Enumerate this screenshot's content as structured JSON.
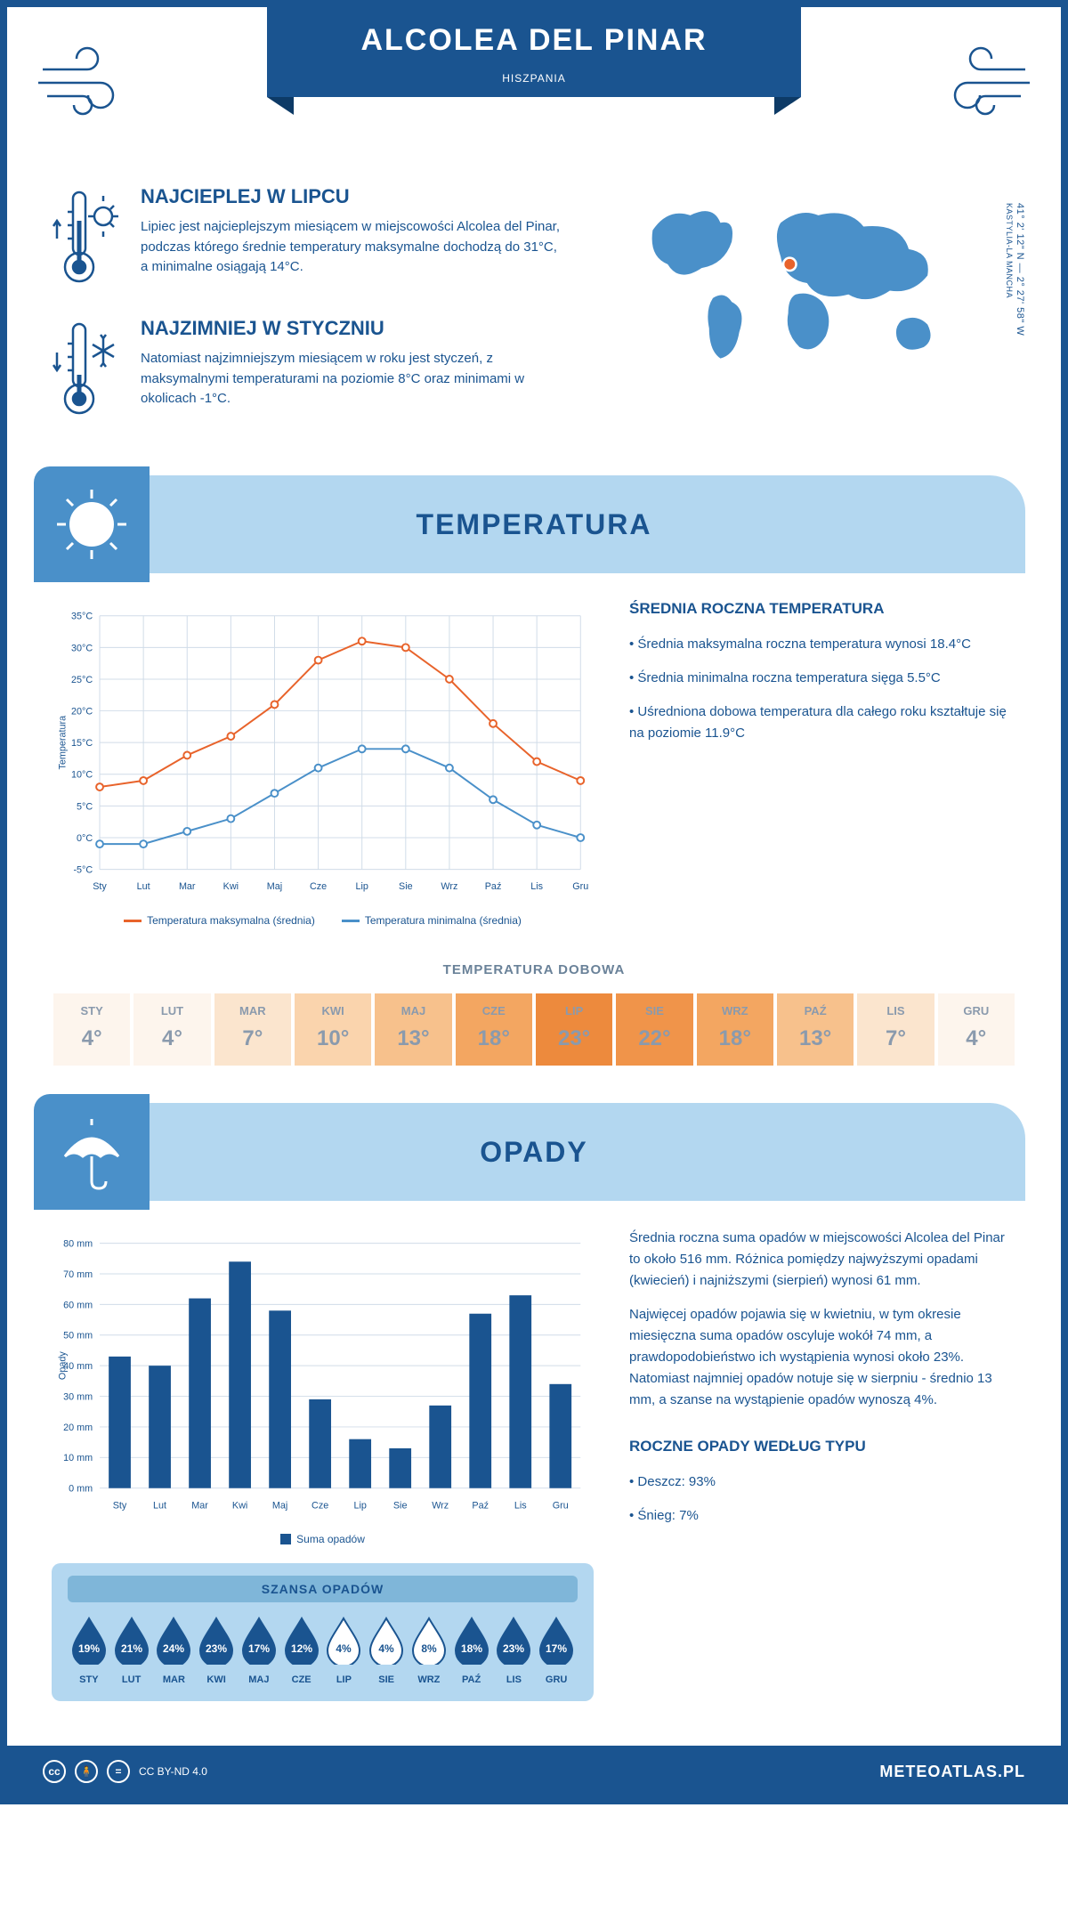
{
  "header": {
    "title": "ALCOLEA DEL PINAR",
    "subtitle": "HISZPANIA"
  },
  "coords": {
    "text": "41° 2' 12\" N — 2° 27' 58\" W",
    "region": "KASTYLIA-LA MANCHA"
  },
  "facts": {
    "hot": {
      "title": "NAJCIEPLEJ W LIPCU",
      "text": "Lipiec jest najcieplejszym miesiącem w miejscowości Alcolea del Pinar, podczas którego średnie temperatury maksymalne dochodzą do 31°C, a minimalne osiągają 14°C."
    },
    "cold": {
      "title": "NAJZIMNIEJ W STYCZNIU",
      "text": "Natomiast najzimniejszym miesiącem w roku jest styczeń, z maksymalnymi temperaturami na poziomie 8°C oraz minimami w okolicach -1°C."
    }
  },
  "temp_section": {
    "title": "TEMPERATURA",
    "chart": {
      "type": "line",
      "months": [
        "Sty",
        "Lut",
        "Mar",
        "Kwi",
        "Maj",
        "Cze",
        "Lip",
        "Sie",
        "Wrz",
        "Paź",
        "Lis",
        "Gru"
      ],
      "ylim": [
        -5,
        35
      ],
      "ytick_step": 5,
      "ylabel": "Temperatura",
      "ytick_suffix": "°C",
      "series": [
        {
          "name": "Temperatura maksymalna (średnia)",
          "color": "#e8632b",
          "values": [
            8,
            9,
            13,
            16,
            21,
            28,
            31,
            30,
            25,
            18,
            12,
            9
          ]
        },
        {
          "name": "Temperatura minimalna (średnia)",
          "color": "#4a90c9",
          "values": [
            -1,
            -1,
            1,
            3,
            7,
            11,
            14,
            14,
            11,
            6,
            2,
            0
          ]
        }
      ],
      "grid_color": "#d0dce8",
      "background_color": "#ffffff",
      "line_width": 2,
      "marker_size": 4
    },
    "info": {
      "title": "ŚREDNIA ROCZNA TEMPERATURA",
      "bullets": [
        "Średnia maksymalna roczna temperatura wynosi 18.4°C",
        "Średnia minimalna roczna temperatura sięga 5.5°C",
        "Uśredniona dobowa temperatura dla całego roku kształtuje się na poziomie 11.9°C"
      ]
    },
    "daily": {
      "title": "TEMPERATURA DOBOWA",
      "months": [
        "STY",
        "LUT",
        "MAR",
        "KWI",
        "MAJ",
        "CZE",
        "LIP",
        "SIE",
        "WRZ",
        "PAŹ",
        "LIS",
        "GRU"
      ],
      "values": [
        "4°",
        "4°",
        "7°",
        "10°",
        "13°",
        "18°",
        "23°",
        "22°",
        "18°",
        "13°",
        "7°",
        "4°"
      ],
      "colors": [
        "#fdf5ed",
        "#fdf5ed",
        "#fbe5ce",
        "#fad4ad",
        "#f7c18c",
        "#f3a661",
        "#ed8a3d",
        "#f0944a",
        "#f3a661",
        "#f7c18c",
        "#fbe5ce",
        "#fdf5ed"
      ]
    }
  },
  "rain_section": {
    "title": "OPADY",
    "chart": {
      "type": "bar",
      "months": [
        "Sty",
        "Lut",
        "Mar",
        "Kwi",
        "Maj",
        "Cze",
        "Lip",
        "Sie",
        "Wrz",
        "Paź",
        "Lis",
        "Gru"
      ],
      "values": [
        43,
        40,
        62,
        74,
        58,
        29,
        16,
        13,
        27,
        57,
        63,
        34
      ],
      "ylim": [
        0,
        80
      ],
      "ytick_step": 10,
      "ylabel": "Opady",
      "ytick_suffix": " mm",
      "bar_color": "#1a5490",
      "grid_color": "#d0dce8",
      "background_color": "#ffffff",
      "legend_label": "Suma opadów"
    },
    "info": {
      "p1": "Średnia roczna suma opadów w miejscowości Alcolea del Pinar to około 516 mm. Różnica pomiędzy najwyższymi opadami (kwiecień) i najniższymi (sierpień) wynosi 61 mm.",
      "p2": "Najwięcej opadów pojawia się w kwietniu, w tym okresie miesięczna suma opadów oscyluje wokół 74 mm, a prawdopodobieństwo ich wystąpienia wynosi około 23%. Natomiast najmniej opadów notuje się w sierpniu - średnio 13 mm, a szanse na wystąpienie opadów wynoszą 4%."
    },
    "chance": {
      "title": "SZANSA OPADÓW",
      "months": [
        "STY",
        "LUT",
        "MAR",
        "KWI",
        "MAJ",
        "CZE",
        "LIP",
        "SIE",
        "WRZ",
        "PAŹ",
        "LIS",
        "GRU"
      ],
      "values": [
        "19%",
        "21%",
        "24%",
        "23%",
        "17%",
        "12%",
        "4%",
        "4%",
        "8%",
        "18%",
        "23%",
        "17%"
      ],
      "fills": [
        "#1a5490",
        "#1a5490",
        "#1a5490",
        "#1a5490",
        "#1a5490",
        "#1a5490",
        "#ffffff",
        "#ffffff",
        "#ffffff",
        "#1a5490",
        "#1a5490",
        "#1a5490"
      ],
      "text_colors": [
        "#ffffff",
        "#ffffff",
        "#ffffff",
        "#ffffff",
        "#ffffff",
        "#ffffff",
        "#1a5490",
        "#1a5490",
        "#1a5490",
        "#ffffff",
        "#ffffff",
        "#ffffff"
      ]
    },
    "by_type": {
      "title": "ROCZNE OPADY WEDŁUG TYPU",
      "items": [
        "Deszcz: 93%",
        "Śnieg: 7%"
      ]
    }
  },
  "footer": {
    "license": "CC BY-ND 4.0",
    "site": "METEOATLAS.PL"
  },
  "colors": {
    "primary": "#1a5490",
    "band": "#b3d7f0",
    "band_icon": "#4a90c9"
  }
}
